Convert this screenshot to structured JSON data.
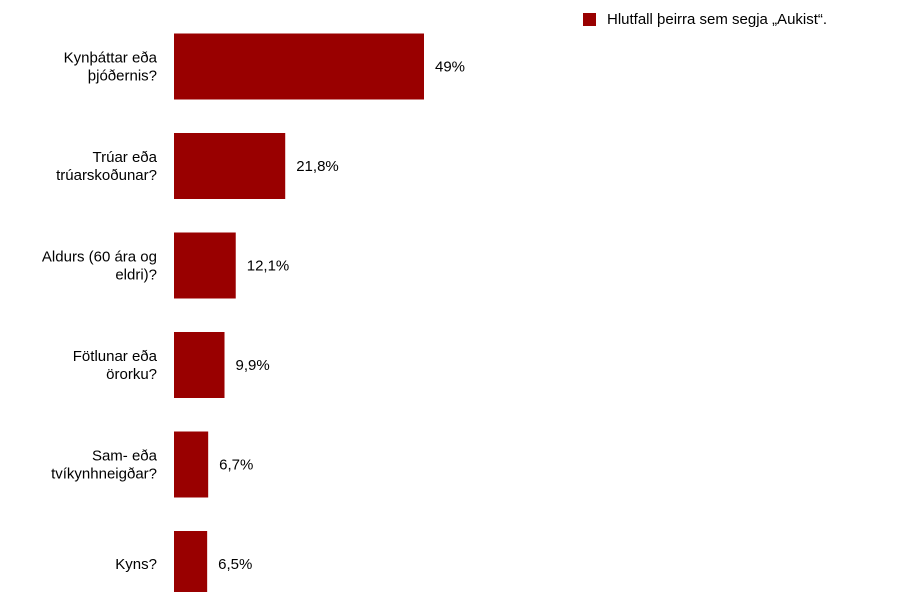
{
  "chart_data": {
    "type": "bar",
    "orientation": "horizontal",
    "categories": [
      [
        "Kynþáttar eða",
        "þjóðernis?"
      ],
      [
        "Trúar eða",
        "trúarskoðunar?"
      ],
      [
        "Aldurs (60 ára og",
        "eldri)?"
      ],
      [
        "Fötlunar eða",
        "örorku?"
      ],
      [
        "Sam- eða",
        "tvíkynhneigðar?"
      ],
      [
        "Kyns?"
      ]
    ],
    "series": [
      {
        "name": "Hlutfall þeirra sem segja „Aukist“.",
        "values": [
          49,
          21.8,
          12.1,
          9.9,
          6.7,
          6.5
        ],
        "labels": [
          "49%",
          "21,8%",
          "12,1%",
          "9,9%",
          "6,7%",
          "6,5%"
        ],
        "color": "#990000"
      }
    ],
    "xlim": [
      0,
      100
    ],
    "grid": false,
    "legend": "top-right"
  }
}
